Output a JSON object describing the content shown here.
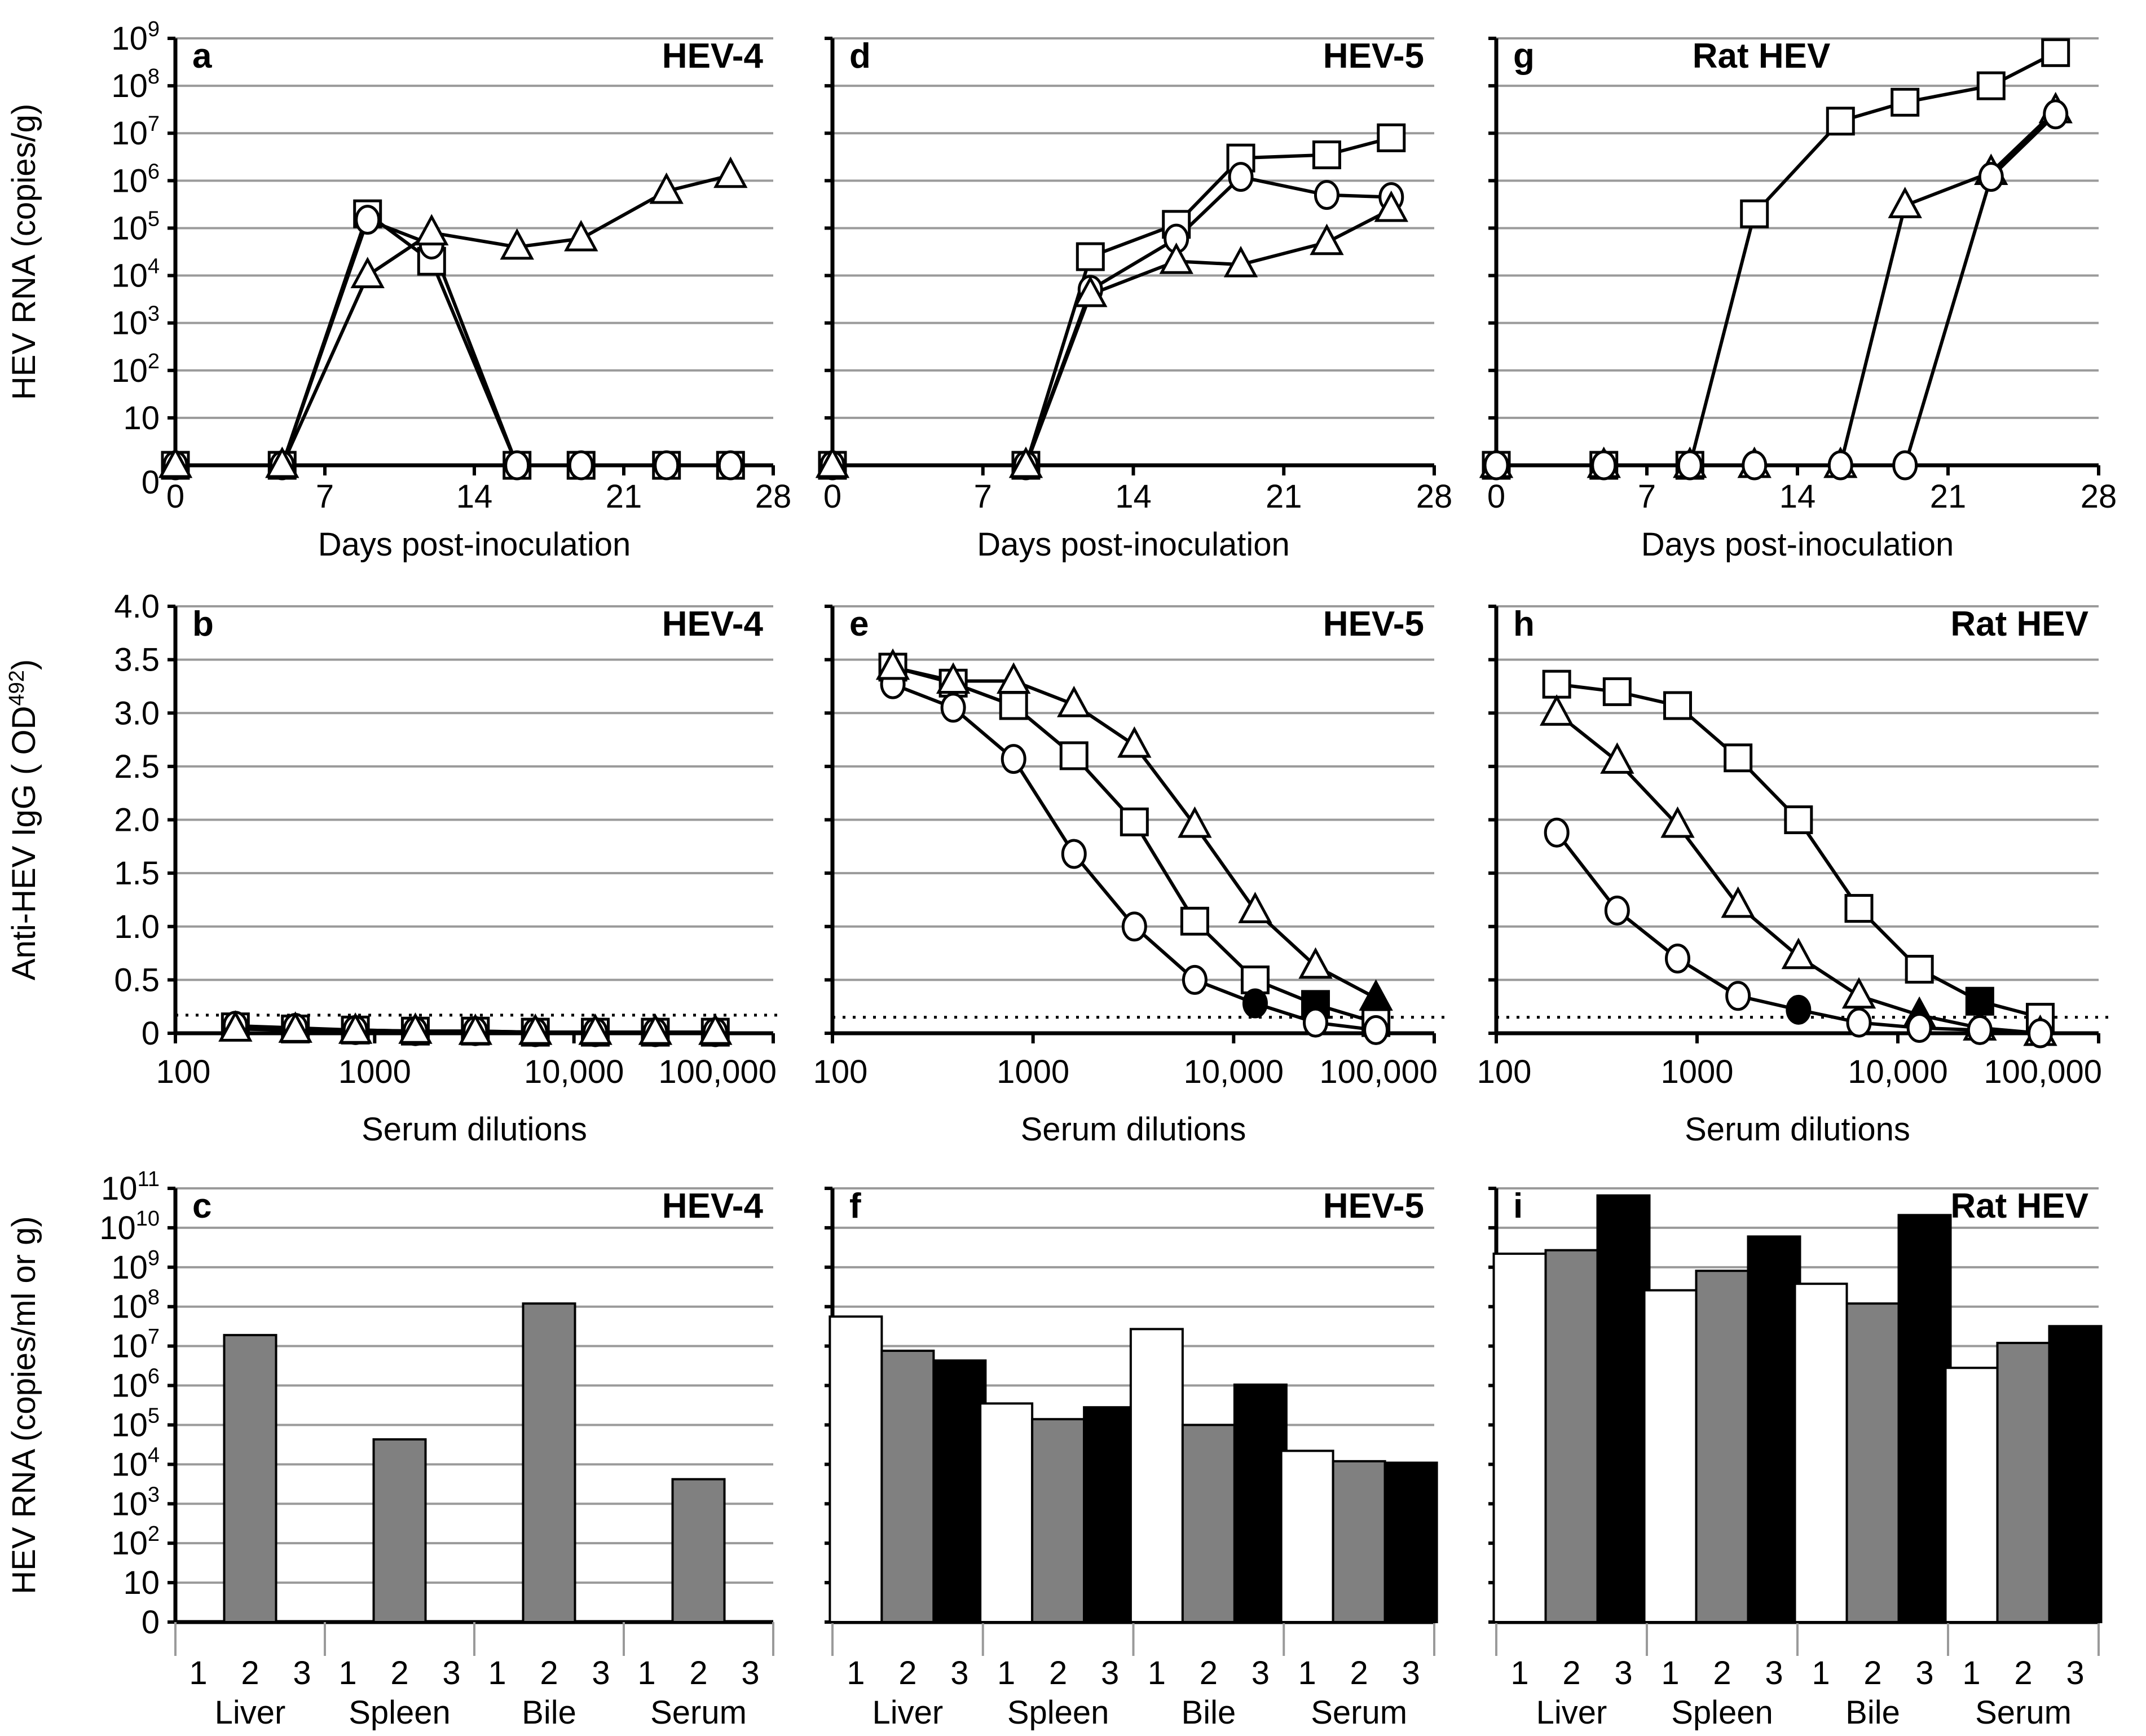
{
  "colors": {
    "grid": "#9a9a9a",
    "axis": "#000000",
    "bar_1": "#ffffff",
    "bar_2": "#808080",
    "bar_3": "#000000",
    "marker_fill": "#ffffff",
    "marker_filled": "#000000"
  },
  "chart_data": [
    {
      "panel": "a",
      "title": "HEV-4",
      "type": "line",
      "row": "timecourse",
      "xlabel": "Days post-inoculation",
      "xlim": [
        0,
        28
      ],
      "x_tick_labels": [
        "0",
        "7",
        "14",
        "21",
        "28"
      ],
      "ylabel": "HEV RNA (copies/g)",
      "yscale": "log (0 shown at bottom)",
      "y_tick_labels": [
        {
          "b": "0",
          "s": ""
        },
        {
          "b": "10",
          "s": ""
        },
        {
          "b": "10",
          "s": "2"
        },
        {
          "b": "10",
          "s": "3"
        },
        {
          "b": "10",
          "s": "4"
        },
        {
          "b": "10",
          "s": "5"
        },
        {
          "b": "10",
          "s": "6"
        },
        {
          "b": "10",
          "s": "7"
        },
        {
          "b": "10",
          "s": "8"
        },
        {
          "b": "10",
          "s": "9"
        }
      ],
      "series": [
        {
          "name": "square",
          "marker": "square",
          "x": [
            0,
            5,
            9,
            12,
            16,
            19,
            23,
            26
          ],
          "y": [
            0,
            0,
            200000,
            20000,
            0,
            0,
            0,
            0
          ]
        },
        {
          "name": "circle",
          "marker": "circle",
          "x": [
            0,
            5,
            9,
            12,
            16,
            19,
            23,
            26
          ],
          "y": [
            0,
            0,
            150000,
            45000,
            0,
            0,
            0,
            0
          ]
        },
        {
          "name": "triangle",
          "marker": "triangle",
          "x": [
            0,
            5,
            9,
            12,
            16,
            19,
            23,
            26
          ],
          "y": [
            0,
            0,
            10000,
            80000,
            40000,
            60000,
            600000,
            1300000
          ]
        }
      ]
    },
    {
      "panel": "d",
      "title": "HEV-5",
      "type": "line",
      "row": "timecourse",
      "xlabel": "Days post-inoculation",
      "xlim": [
        0,
        28
      ],
      "x_tick_labels": [
        "0",
        "7",
        "14",
        "21",
        "28"
      ],
      "series": [
        {
          "name": "square",
          "marker": "square",
          "x": [
            0,
            9,
            12,
            16,
            19,
            23,
            26
          ],
          "y": [
            0,
            0,
            25000,
            120000,
            3000000,
            3500000,
            8000000
          ]
        },
        {
          "name": "circle",
          "marker": "circle",
          "x": [
            0,
            9,
            12,
            16,
            19,
            23,
            26
          ],
          "y": [
            0,
            0,
            5000,
            60000,
            1200000,
            500000,
            450000
          ]
        },
        {
          "name": "triangle",
          "marker": "triangle",
          "x": [
            0,
            9,
            12,
            16,
            19,
            23,
            26
          ],
          "y": [
            0,
            0,
            4000,
            20000,
            17000,
            50000,
            250000
          ]
        }
      ]
    },
    {
      "panel": "g",
      "title": "Rat HEV",
      "type": "line",
      "row": "timecourse",
      "xlabel": "Days post-inoculation",
      "xlim": [
        0,
        28
      ],
      "x_tick_labels": [
        "0",
        "7",
        "14",
        "21",
        "28"
      ],
      "series": [
        {
          "name": "square",
          "marker": "square",
          "x": [
            0,
            5,
            9,
            12,
            16,
            19,
            23,
            26
          ],
          "y": [
            0,
            0,
            0,
            200000,
            18000000,
            45000000,
            100000000,
            500000000
          ]
        },
        {
          "name": "triangle",
          "marker": "triangle",
          "x": [
            0,
            5,
            9,
            12,
            16,
            19,
            23,
            26
          ],
          "y": [
            0,
            0,
            0,
            0,
            0,
            300000,
            1500000,
            30000000
          ]
        },
        {
          "name": "circle",
          "marker": "circle",
          "x": [
            0,
            5,
            9,
            12,
            16,
            19,
            23,
            26
          ],
          "y": [
            0,
            0,
            0,
            0,
            0,
            0,
            1200000,
            25000000
          ]
        }
      ]
    },
    {
      "panel": "b",
      "title": "HEV-4",
      "type": "line",
      "row": "elisa",
      "xlabel": "Serum dilutions",
      "xscale": "log",
      "xlim": [
        100,
        100000
      ],
      "x_tick_labels": [
        "100",
        "1000",
        "10,000",
        "100,000"
      ],
      "ylabel": [
        "Anti-HEV IgG ( OD",
        "492",
        ")"
      ],
      "ylim": [
        0,
        4.0
      ],
      "y_tick_labels": [
        "0",
        "0.5",
        "1.0",
        "1.5",
        "2.0",
        "2.5",
        "3.0",
        "3.5",
        "4.0"
      ],
      "cutoff": 0.17,
      "series": [
        {
          "name": "square",
          "marker": "square",
          "x": [
            200,
            400,
            800,
            1600,
            3200,
            6400,
            12800,
            25600,
            51200
          ],
          "y": [
            0.06,
            0.04,
            0.03,
            0.02,
            0.02,
            0.01,
            0.01,
            0.01,
            0.01
          ],
          "filled_index": -1
        },
        {
          "name": "circle",
          "marker": "circle",
          "x": [
            200,
            400,
            800,
            1600,
            3200,
            6400,
            12800,
            25600,
            51200
          ],
          "y": [
            0.07,
            0.05,
            0.03,
            0.02,
            0.02,
            0.01,
            0.01,
            0.01,
            0.01
          ],
          "filled_index": -1
        },
        {
          "name": "triangle",
          "marker": "triangle",
          "x": [
            200,
            400,
            800,
            1600,
            3200,
            6400,
            12800,
            25600,
            51200
          ],
          "y": [
            0.04,
            0.03,
            0.02,
            0.02,
            0.01,
            0.01,
            0.01,
            0.01,
            0.01
          ],
          "filled_index": -1
        }
      ]
    },
    {
      "panel": "e",
      "title": "HEV-5",
      "type": "line",
      "row": "elisa",
      "xlabel": "Serum dilutions",
      "xscale": "log",
      "xlim": [
        100,
        100000
      ],
      "x_tick_labels": [
        "100",
        "1000",
        "10,000",
        "100,000"
      ],
      "ylim": [
        0,
        4.0
      ],
      "cutoff": 0.15,
      "series": [
        {
          "name": "square",
          "marker": "square",
          "x": [
            200,
            400,
            800,
            1600,
            3200,
            6400,
            12800,
            25600,
            51200
          ],
          "y": [
            3.43,
            3.28,
            3.07,
            2.6,
            1.98,
            1.05,
            0.5,
            0.27,
            0.1
          ],
          "filled_index": 7
        },
        {
          "name": "circle",
          "marker": "circle",
          "x": [
            200,
            400,
            800,
            1600,
            3200,
            6400,
            12800,
            25600,
            51200
          ],
          "y": [
            3.27,
            3.05,
            2.57,
            1.68,
            1.0,
            0.5,
            0.28,
            0.1,
            0.03
          ],
          "filled_index": 6
        },
        {
          "name": "triangle",
          "marker": "triangle",
          "x": [
            200,
            400,
            800,
            1600,
            3200,
            6400,
            12800,
            25600,
            51200
          ],
          "y": [
            3.43,
            3.3,
            3.3,
            3.08,
            2.7,
            1.95,
            1.15,
            0.63,
            0.33
          ],
          "filled_index": 8
        }
      ]
    },
    {
      "panel": "h",
      "title": "Rat HEV",
      "type": "line",
      "row": "elisa",
      "xlabel": "Serum dilutions",
      "xscale": "log",
      "xlim": [
        100,
        100000
      ],
      "x_tick_labels": [
        "100",
        "1000",
        "10,000",
        "100,000"
      ],
      "ylim": [
        0,
        4.0
      ],
      "cutoff": 0.15,
      "series": [
        {
          "name": "square",
          "marker": "square",
          "x": [
            200,
            400,
            800,
            1600,
            3200,
            6400,
            12800,
            25600,
            51200
          ],
          "y": [
            3.27,
            3.2,
            3.07,
            2.58,
            2.0,
            1.17,
            0.6,
            0.3,
            0.15
          ],
          "filled_index": 7
        },
        {
          "name": "triangle",
          "marker": "triangle",
          "x": [
            200,
            400,
            800,
            1600,
            3200,
            6400,
            12800,
            25600,
            51200
          ],
          "y": [
            3.0,
            2.55,
            1.95,
            1.2,
            0.72,
            0.35,
            0.17,
            0.05,
            0.0
          ],
          "filled_index": 6
        },
        {
          "name": "circle",
          "marker": "circle",
          "x": [
            200,
            400,
            800,
            1600,
            3200,
            6400,
            12800,
            25600,
            51200
          ],
          "y": [
            1.88,
            1.15,
            0.7,
            0.35,
            0.22,
            0.1,
            0.05,
            0.03,
            0.0
          ],
          "filled_index": 4
        }
      ]
    },
    {
      "panel": "c",
      "title": "HEV-4",
      "type": "bar",
      "row": "tissue",
      "categories": [
        "Liver",
        "Spleen",
        "Bile",
        "Serum"
      ],
      "sub_labels": [
        "1",
        "2",
        "3"
      ],
      "ylabel": "HEV RNA (copies/ml or g)",
      "yscale": "log (0 shown at bottom)",
      "y_tick_labels": [
        {
          "b": "0",
          "s": ""
        },
        {
          "b": "10",
          "s": ""
        },
        {
          "b": "10",
          "s": "2"
        },
        {
          "b": "10",
          "s": "3"
        },
        {
          "b": "10",
          "s": "4"
        },
        {
          "b": "10",
          "s": "5"
        },
        {
          "b": "10",
          "s": "6"
        },
        {
          "b": "10",
          "s": "7"
        },
        {
          "b": "10",
          "s": "8"
        },
        {
          "b": "10",
          "s": "9"
        },
        {
          "b": "10",
          "s": "10"
        },
        {
          "b": "10",
          "s": "11"
        }
      ],
      "series": [
        {
          "name": "1",
          "values": [
            0,
            0,
            0,
            0
          ]
        },
        {
          "name": "2",
          "values": [
            19000000,
            43000,
            120000000,
            4200
          ]
        },
        {
          "name": "3",
          "values": [
            0,
            0,
            0,
            0
          ]
        }
      ]
    },
    {
      "panel": "f",
      "title": "HEV-5",
      "type": "bar",
      "row": "tissue",
      "categories": [
        "Liver",
        "Spleen",
        "Bile",
        "Serum"
      ],
      "sub_labels": [
        "1",
        "2",
        "3"
      ],
      "series": [
        {
          "name": "1",
          "values": [
            56000000,
            350000,
            27000000,
            22000
          ]
        },
        {
          "name": "2",
          "values": [
            7600000,
            140000,
            100000,
            12000
          ]
        },
        {
          "name": "3",
          "values": [
            4300000,
            280000,
            1050000,
            11000
          ]
        }
      ]
    },
    {
      "panel": "i",
      "title": "Rat HEV",
      "type": "bar",
      "row": "tissue",
      "categories": [
        "Liver",
        "Spleen",
        "Bile",
        "Serum"
      ],
      "sub_labels": [
        "1",
        "2",
        "3"
      ],
      "series": [
        {
          "name": "1",
          "values": [
            2200000000,
            260000000,
            380000000,
            2800000
          ]
        },
        {
          "name": "2",
          "values": [
            2700000000,
            810000000,
            120000000,
            12000000
          ]
        },
        {
          "name": "3",
          "values": [
            66000000000,
            6000000000,
            21000000000,
            32000000
          ]
        }
      ]
    }
  ]
}
